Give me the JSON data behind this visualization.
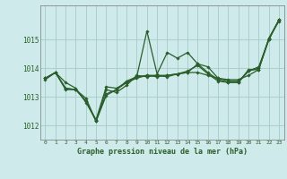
{
  "title": "Graphe pression niveau de la mer (hPa)",
  "background_color": "#ceeaea",
  "grid_color": "#aacece",
  "line_color": "#2a5e2a",
  "marker_color": "#2a5e2a",
  "xlim": [
    -0.5,
    23.5
  ],
  "ylim": [
    1011.5,
    1016.2
  ],
  "yticks": [
    1012,
    1013,
    1014,
    1015
  ],
  "xticks": [
    0,
    1,
    2,
    3,
    4,
    5,
    6,
    7,
    8,
    9,
    10,
    11,
    12,
    13,
    14,
    15,
    16,
    17,
    18,
    19,
    20,
    21,
    22,
    23
  ],
  "series": [
    [
      1013.65,
      1013.85,
      1013.5,
      1013.3,
      1012.8,
      1012.2,
      1013.35,
      1013.3,
      1013.5,
      1013.65,
      1013.75,
      1013.75,
      1013.75,
      1013.8,
      1013.85,
      1013.85,
      1013.75,
      1013.65,
      1013.6,
      1013.6,
      1013.75,
      1013.95,
      1015.05,
      1015.65
    ],
    [
      1013.65,
      1013.85,
      1013.3,
      1013.25,
      1012.85,
      1012.15,
      1013.1,
      1013.25,
      1013.5,
      1013.7,
      1015.3,
      1013.8,
      1014.55,
      1014.35,
      1014.55,
      1014.15,
      1013.85,
      1013.6,
      1013.5,
      1013.5,
      1013.95,
      1013.95,
      1015.0,
      1015.7
    ],
    [
      1013.65,
      1013.85,
      1013.3,
      1013.25,
      1012.85,
      1012.15,
      1013.25,
      1013.15,
      1013.4,
      1013.75,
      1013.7,
      1013.75,
      1013.7,
      1013.8,
      1013.9,
      1014.1,
      1013.8,
      1013.55,
      1013.5,
      1013.5,
      1013.9,
      1014.0,
      1015.05,
      1015.7
    ],
    [
      1013.6,
      1013.85,
      1013.25,
      1013.25,
      1012.95,
      1012.15,
      1013.05,
      1013.25,
      1013.55,
      1013.7,
      1013.75,
      1013.7,
      1013.75,
      1013.8,
      1013.85,
      1014.15,
      1014.05,
      1013.65,
      1013.55,
      1013.55,
      1013.9,
      1014.05,
      1015.0,
      1015.7
    ]
  ]
}
